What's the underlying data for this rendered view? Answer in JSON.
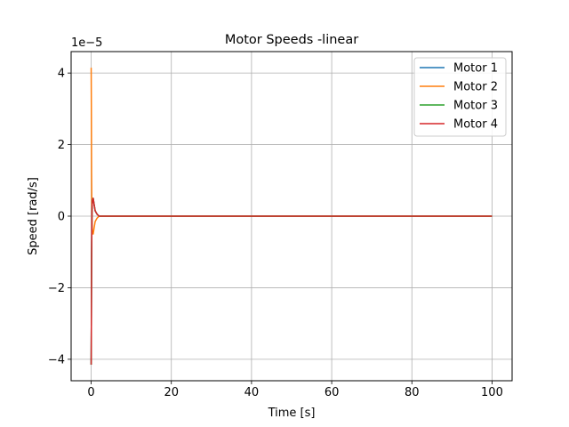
{
  "chart_data": {
    "type": "line",
    "title": "Motor Speeds -linear",
    "xlabel": "Time [s]",
    "ylabel": "Speed [rad/s]",
    "y_multiplier_label": "1e−5",
    "xlim": [
      -5,
      105
    ],
    "ylim": [
      -4.6,
      4.6
    ],
    "x_ticks": [
      0,
      20,
      40,
      60,
      80,
      100
    ],
    "x_tick_labels": [
      "0",
      "20",
      "40",
      "60",
      "80",
      "100"
    ],
    "y_ticks": [
      -4,
      -2,
      0,
      2,
      4
    ],
    "y_tick_labels": [
      "−4",
      "−2",
      "0",
      "2",
      "4"
    ],
    "grid": true,
    "legend_position": "top-right",
    "series": [
      {
        "name": "Motor 1",
        "color": "#1f77b4",
        "x": [
          0,
          0.05,
          0.1,
          0.2,
          0.3,
          0.5,
          0.7,
          1.0,
          1.5,
          2.0,
          3.0,
          100
        ],
        "y": [
          -4.15,
          -3.0,
          -1.2,
          0.1,
          0.45,
          0.5,
          0.35,
          0.15,
          0.05,
          0.0,
          0.0,
          0.0
        ]
      },
      {
        "name": "Motor 2",
        "color": "#ff7f0e",
        "x": [
          0,
          0.05,
          0.1,
          0.2,
          0.3,
          0.5,
          0.7,
          1.0,
          1.5,
          2.0,
          3.0,
          100
        ],
        "y": [
          4.15,
          3.0,
          1.2,
          -0.1,
          -0.45,
          -0.5,
          -0.35,
          -0.15,
          -0.05,
          0.0,
          0.0,
          0.0
        ]
      },
      {
        "name": "Motor 3",
        "color": "#2ca02c",
        "x": [
          0,
          0.05,
          0.1,
          0.2,
          0.3,
          0.5,
          0.7,
          1.0,
          1.5,
          2.0,
          3.0,
          100
        ],
        "y": [
          -4.15,
          -3.0,
          -1.2,
          0.1,
          0.45,
          0.5,
          0.35,
          0.15,
          0.05,
          0.0,
          0.0,
          0.0
        ]
      },
      {
        "name": "Motor 4",
        "color": "#d62728",
        "x": [
          0,
          0.05,
          0.1,
          0.2,
          0.3,
          0.5,
          0.7,
          1.0,
          1.5,
          2.0,
          3.0,
          100
        ],
        "y": [
          -4.15,
          -3.0,
          -1.2,
          0.1,
          0.45,
          0.5,
          0.35,
          0.15,
          0.05,
          0.0,
          0.0,
          0.0
        ]
      }
    ]
  }
}
